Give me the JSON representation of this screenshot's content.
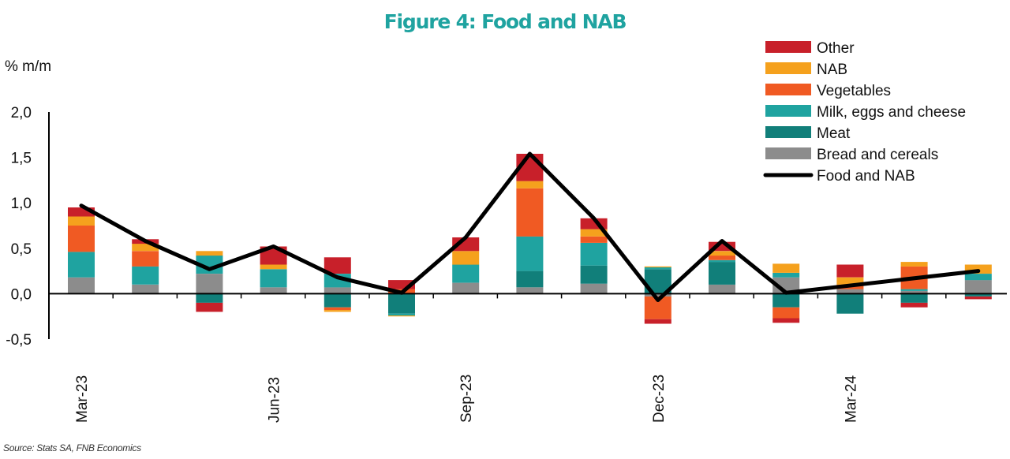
{
  "chart_data": {
    "type": "bar",
    "stacked": true,
    "title": "Figure 4: Food and NAB",
    "ylabel": "% m/m",
    "xlabel": "",
    "ylim": [
      -0.5,
      2.0
    ],
    "yticks": [
      -0.5,
      0.0,
      0.5,
      1.0,
      1.5,
      2.0
    ],
    "ytick_labels": [
      "-0,5",
      "0,0",
      "0,5",
      "1,0",
      "1,5",
      "2,0"
    ],
    "categories": [
      "Mar-23",
      "Apr-23",
      "May-23",
      "Jun-23",
      "Jul-23",
      "Aug-23",
      "Sep-23",
      "Oct-23",
      "Nov-23",
      "Dec-23",
      "Jan-24",
      "Feb-24",
      "Mar-24",
      "Apr-24",
      "May-24"
    ],
    "x_tick_labels": [
      "Mar-23",
      "Jun-23",
      "Sep-23",
      "Dec-23",
      "Mar-24"
    ],
    "legend_position": "top-right",
    "series": [
      {
        "name": "Other",
        "type": "bar",
        "color": "#c8202a",
        "values": [
          0.1,
          0.05,
          -0.1,
          0.2,
          0.18,
          0.1,
          0.15,
          0.3,
          0.12,
          -0.05,
          0.1,
          -0.05,
          0.14,
          -0.05,
          -0.03
        ]
      },
      {
        "name": "NAB",
        "type": "bar",
        "color": "#f5a11d",
        "values": [
          0.1,
          0.08,
          0.05,
          0.05,
          -0.02,
          -0.01,
          0.15,
          0.08,
          0.08,
          0.01,
          0.05,
          0.1,
          0.08,
          0.05,
          0.1
        ]
      },
      {
        "name": "Vegetables",
        "type": "bar",
        "color": "#f05a23",
        "values": [
          0.29,
          0.17,
          0.0,
          0.0,
          -0.03,
          0.05,
          0.0,
          0.53,
          0.07,
          -0.25,
          0.05,
          -0.12,
          0.05,
          0.25,
          0.0
        ]
      },
      {
        "name": "Milk, eggs and cheese",
        "type": "bar",
        "color": "#1fa3a0",
        "values": [
          0.28,
          0.2,
          0.2,
          0.2,
          0.15,
          -0.02,
          0.2,
          0.38,
          0.25,
          0.02,
          0.02,
          0.05,
          0.0,
          0.02,
          0.07
        ]
      },
      {
        "name": "Meat",
        "type": "bar",
        "color": "#117f7a",
        "values": [
          0.0,
          0.0,
          -0.1,
          0.0,
          -0.15,
          -0.22,
          0.0,
          0.18,
          0.2,
          0.27,
          0.25,
          -0.15,
          -0.22,
          -0.1,
          -0.03
        ]
      },
      {
        "name": "Bread and cereals",
        "type": "bar",
        "color": "#8c8c8c",
        "values": [
          0.18,
          0.1,
          0.22,
          0.07,
          0.07,
          0.0,
          0.12,
          0.07,
          0.11,
          -0.03,
          0.1,
          0.18,
          0.05,
          0.03,
          0.15
        ]
      },
      {
        "name": "Food and NAB",
        "type": "line",
        "color": "#000000",
        "values": [
          0.97,
          0.58,
          0.27,
          0.52,
          0.18,
          0.01,
          0.62,
          1.54,
          0.83,
          -0.07,
          0.58,
          0.01,
          null,
          null,
          0.25
        ]
      }
    ]
  },
  "source": "Source: Stats SA, FNB Economics"
}
